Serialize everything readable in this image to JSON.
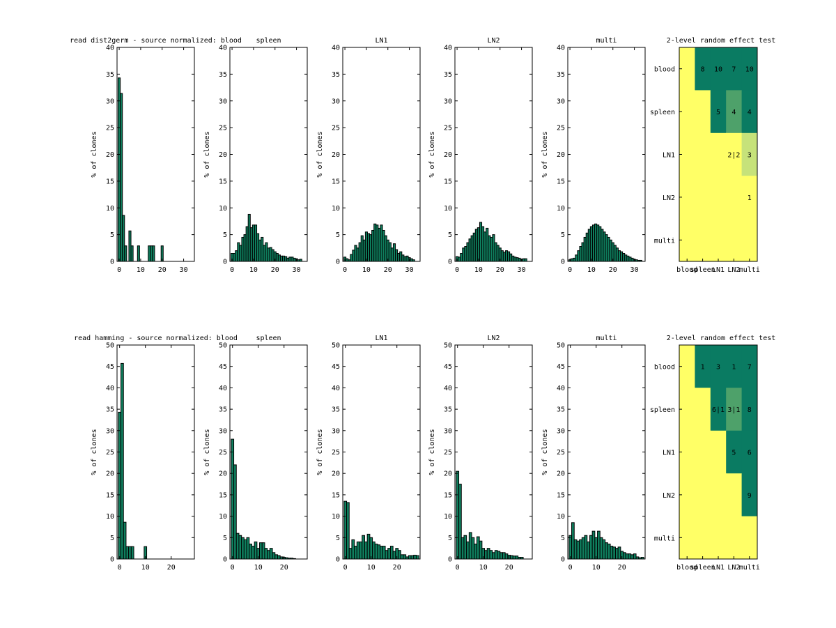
{
  "colors": {
    "bar": "#0f7f5e",
    "heat_high": "#0a7b62",
    "heat_mid": "#4ea16a",
    "heat_low": "#c6e27a",
    "heat_zero": "#ffff66"
  },
  "chart_data": [
    {
      "type": "bar",
      "title": "read  dist2germ - source normalized: blood",
      "ylabel": "% of clones",
      "x_start": 0,
      "ylim": [
        0,
        40
      ],
      "yticks": [
        0,
        5,
        10,
        15,
        20,
        25,
        30,
        35,
        40
      ],
      "xlim": [
        -1,
        35
      ],
      "xticks": [
        0,
        10,
        20,
        30
      ],
      "values": [
        34.3,
        31.4,
        8.6,
        2.9,
        0,
        5.7,
        2.9,
        0,
        0,
        2.9,
        0,
        0,
        0,
        0,
        2.9,
        2.9,
        2.9,
        0,
        0,
        0,
        2.9
      ]
    },
    {
      "type": "bar",
      "title": "spleen",
      "ylabel": "% of clones",
      "x_start": 0,
      "ylim": [
        0,
        40
      ],
      "yticks": [
        0,
        5,
        10,
        15,
        20,
        25,
        30,
        35,
        40
      ],
      "xlim": [
        -1,
        35
      ],
      "xticks": [
        0,
        10,
        20,
        30
      ],
      "values": [
        1.5,
        1.5,
        2.0,
        3.5,
        3.0,
        4.5,
        5.0,
        6.5,
        8.8,
        6.3,
        6.8,
        6.8,
        5.2,
        4.0,
        4.5,
        3.0,
        3.5,
        2.5,
        2.6,
        2.2,
        1.8,
        1.5,
        1.2,
        1.0,
        1.0,
        0.9,
        0.6,
        0.8,
        0.8,
        0.6,
        0.5,
        0.3,
        0.4
      ]
    },
    {
      "type": "bar",
      "title": "LN1",
      "ylabel": "% of clones",
      "x_start": 0,
      "ylim": [
        0,
        40
      ],
      "yticks": [
        0,
        5,
        10,
        15,
        20,
        25,
        30,
        35,
        40
      ],
      "xlim": [
        -1,
        35
      ],
      "xticks": [
        0,
        10,
        20,
        30
      ],
      "values": [
        0.8,
        0.5,
        0.3,
        1.3,
        2.1,
        3.0,
        2.5,
        3.5,
        4.8,
        4.0,
        5.5,
        5.2,
        5.0,
        5.8,
        7.0,
        6.8,
        6.2,
        6.8,
        5.8,
        4.8,
        4.0,
        3.5,
        2.5,
        3.3,
        2.2,
        1.5,
        1.8,
        1.2,
        0.9,
        1.0,
        0.7,
        0.5,
        0.3
      ]
    },
    {
      "type": "bar",
      "title": "LN2",
      "ylabel": "% of clones",
      "x_start": 0,
      "ylim": [
        0,
        40
      ],
      "yticks": [
        0,
        5,
        10,
        15,
        20,
        25,
        30,
        35,
        40
      ],
      "xlim": [
        -1,
        35
      ],
      "xticks": [
        0,
        10,
        20,
        30
      ],
      "values": [
        0.9,
        0.8,
        1.5,
        2.5,
        2.8,
        3.5,
        4.2,
        4.8,
        5.3,
        6.0,
        6.3,
        7.3,
        6.5,
        5.5,
        6.2,
        4.8,
        4.5,
        5.0,
        3.5,
        3.0,
        2.5,
        2.0,
        1.7,
        2.0,
        1.8,
        1.4,
        1.0,
        0.8,
        0.7,
        0.6,
        0.4,
        0.5,
        0.5
      ]
    },
    {
      "type": "bar",
      "title": "multi",
      "ylabel": "% of clones",
      "x_start": 0,
      "ylim": [
        0,
        40
      ],
      "yticks": [
        0,
        5,
        10,
        15,
        20,
        25,
        30,
        35,
        40
      ],
      "xlim": [
        -1,
        35
      ],
      "xticks": [
        0,
        10,
        20,
        30
      ],
      "values": [
        0.3,
        0.5,
        0.6,
        1.2,
        2.0,
        2.8,
        3.5,
        4.5,
        5.3,
        6.0,
        6.5,
        6.8,
        7.0,
        6.8,
        6.5,
        6.0,
        5.5,
        5.0,
        4.5,
        4.0,
        3.5,
        3.0,
        2.5,
        2.0,
        1.8,
        1.5,
        1.2,
        1.0,
        0.8,
        0.6,
        0.4,
        0.3,
        0.2,
        0.2
      ]
    },
    {
      "type": "heatmap",
      "title": "2-level random effect test",
      "rows": [
        "blood",
        "spleen",
        "LN1",
        "LN2",
        "multi"
      ],
      "cols": [
        "blood",
        "spleen",
        "LN1",
        "LN2",
        "multi"
      ],
      "levels": [
        [
          0,
          3,
          3,
          3,
          3
        ],
        [
          0,
          0,
          3,
          2,
          3
        ],
        [
          0,
          0,
          0,
          0,
          1
        ],
        [
          0,
          0,
          0,
          0,
          0
        ],
        [
          0,
          0,
          0,
          0,
          0
        ]
      ],
      "labels": [
        [
          "",
          "8",
          "10",
          "7",
          "10"
        ],
        [
          "",
          "",
          "5",
          "4",
          "4"
        ],
        [
          "",
          "",
          "",
          "2|2",
          "3"
        ],
        [
          "",
          "",
          "",
          "",
          "1"
        ],
        [
          "",
          "",
          "",
          "",
          ""
        ]
      ]
    },
    {
      "type": "bar",
      "title": "read hamming - source normalized: blood",
      "ylabel": "% of clones",
      "x_start": 0,
      "ylim": [
        0,
        50
      ],
      "yticks": [
        0,
        5,
        10,
        15,
        20,
        25,
        30,
        35,
        40,
        45,
        50
      ],
      "xlim": [
        -1,
        29
      ],
      "xticks": [
        0,
        10,
        20
      ],
      "values": [
        34.3,
        45.7,
        8.6,
        2.9,
        2.9,
        2.9,
        0,
        0,
        0,
        0,
        2.9
      ]
    },
    {
      "type": "bar",
      "title": "spleen",
      "ylabel": "% of clones",
      "x_start": 0,
      "ylim": [
        0,
        50
      ],
      "yticks": [
        0,
        5,
        10,
        15,
        20,
        25,
        30,
        35,
        40,
        45,
        50
      ],
      "xlim": [
        -1,
        29
      ],
      "xticks": [
        0,
        10,
        20
      ],
      "values": [
        28.0,
        22.0,
        6.0,
        5.5,
        5.0,
        4.5,
        5.0,
        3.5,
        3.0,
        4.0,
        2.5,
        3.8,
        3.8,
        2.5,
        2.0,
        2.5,
        1.5,
        1.0,
        0.8,
        0.5,
        0.4,
        0.3,
        0.2,
        0.2,
        0.1
      ]
    },
    {
      "type": "bar",
      "title": "LN1",
      "ylabel": "% of clones",
      "x_start": 0,
      "ylim": [
        0,
        50
      ],
      "yticks": [
        0,
        5,
        10,
        15,
        20,
        25,
        30,
        35,
        40,
        45,
        50
      ],
      "xlim": [
        -1,
        29
      ],
      "xticks": [
        0,
        10,
        20
      ],
      "values": [
        13.5,
        13.2,
        2.5,
        4.5,
        3.0,
        4.0,
        4.0,
        5.5,
        4.0,
        5.8,
        5.0,
        4.0,
        3.5,
        3.3,
        3.0,
        3.0,
        2.0,
        2.5,
        3.0,
        1.8,
        2.5,
        2.0,
        1.0,
        1.0,
        0.5,
        0.8,
        0.8,
        0.9,
        0.8
      ]
    },
    {
      "type": "bar",
      "title": "LN2",
      "ylabel": "% of clones",
      "x_start": 0,
      "ylim": [
        0,
        50
      ],
      "yticks": [
        0,
        5,
        10,
        15,
        20,
        25,
        30,
        35,
        40,
        45,
        50
      ],
      "xlim": [
        -1,
        29
      ],
      "xticks": [
        0,
        10,
        20
      ],
      "values": [
        20.5,
        17.5,
        5.0,
        5.5,
        4.0,
        6.2,
        5.0,
        3.5,
        5.2,
        4.2,
        2.5,
        2.0,
        2.5,
        2.0,
        1.5,
        2.0,
        1.8,
        1.5,
        1.5,
        1.2,
        0.9,
        0.8,
        0.7,
        0.7,
        0.4,
        0.4
      ]
    },
    {
      "type": "bar",
      "title": "multi",
      "ylabel": "% of clones",
      "x_start": 0,
      "ylim": [
        0,
        50
      ],
      "yticks": [
        0,
        5,
        10,
        15,
        20,
        25,
        30,
        35,
        40,
        45,
        50
      ],
      "xlim": [
        -1,
        29
      ],
      "xticks": [
        0,
        10,
        20
      ],
      "values": [
        5.5,
        8.5,
        4.5,
        4.2,
        4.5,
        5.0,
        5.5,
        4.0,
        5.5,
        6.5,
        5.0,
        6.5,
        5.0,
        4.5,
        3.8,
        3.5,
        3.0,
        2.8,
        2.5,
        2.8,
        1.8,
        1.5,
        1.2,
        1.2,
        1.0,
        1.2,
        0.5,
        0.3,
        0.4
      ]
    },
    {
      "type": "heatmap",
      "title": "2-level random effect test",
      "rows": [
        "blood",
        "spleen",
        "LN1",
        "LN2",
        "multi"
      ],
      "cols": [
        "blood",
        "spleen",
        "LN1",
        "LN2",
        "multi"
      ],
      "levels": [
        [
          0,
          3,
          3,
          3,
          3
        ],
        [
          0,
          0,
          3,
          2,
          3
        ],
        [
          0,
          0,
          0,
          3,
          3
        ],
        [
          0,
          0,
          0,
          0,
          3
        ],
        [
          0,
          0,
          0,
          0,
          0
        ]
      ],
      "labels": [
        [
          "",
          "1",
          "3",
          "1",
          "7"
        ],
        [
          "",
          "",
          "6|1",
          "3|1",
          "8"
        ],
        [
          "",
          "",
          "",
          "5",
          "6"
        ],
        [
          "",
          "",
          "",
          "",
          "9"
        ],
        [
          "",
          "",
          "",
          "",
          ""
        ]
      ]
    }
  ]
}
